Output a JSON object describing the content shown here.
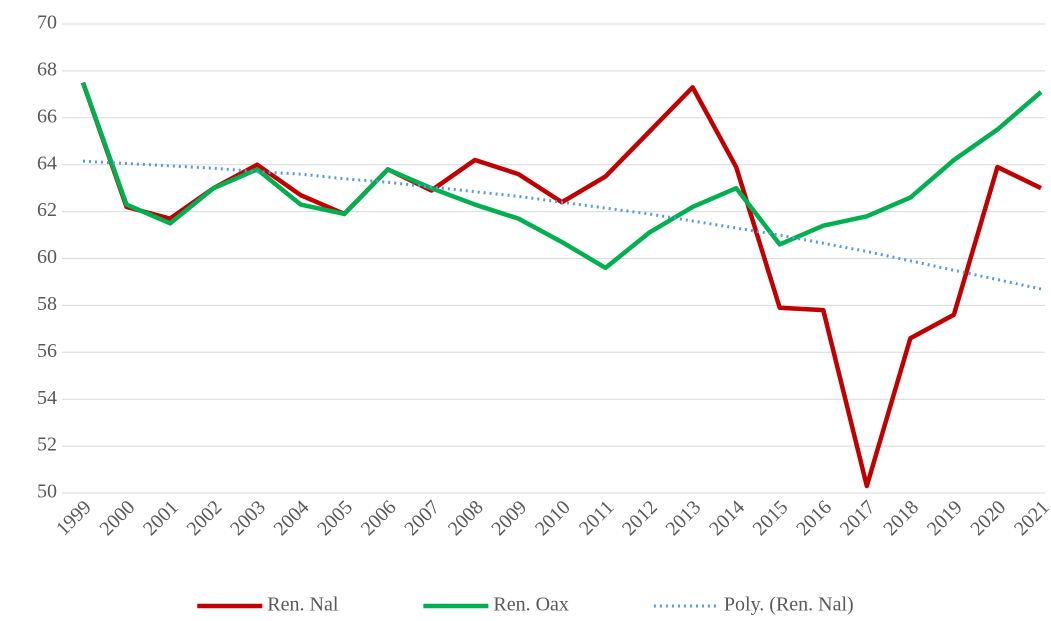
{
  "chart_data": {
    "type": "line",
    "categories": [
      "1999",
      "2000",
      "2001",
      "2002",
      "2003",
      "2004",
      "2005",
      "2006",
      "2007",
      "2008",
      "2009",
      "2010",
      "2011",
      "2012",
      "2013",
      "2014",
      "2015",
      "2016",
      "2017",
      "2018",
      "2019",
      "2020",
      "2021"
    ],
    "series": [
      {
        "name": "Ren. Nal",
        "color": "#c00000",
        "dash": "solid",
        "values": [
          67.5,
          62.2,
          61.7,
          63.0,
          64.0,
          62.7,
          61.9,
          63.8,
          62.9,
          64.2,
          63.6,
          62.4,
          63.5,
          65.4,
          67.3,
          63.9,
          57.9,
          57.8,
          50.3,
          56.6,
          57.6,
          63.9,
          63.0
        ]
      },
      {
        "name": "Ren. Oax",
        "color": "#00b050",
        "dash": "solid",
        "values": [
          67.5,
          62.3,
          61.5,
          63.0,
          63.8,
          62.3,
          61.9,
          63.8,
          63.0,
          62.3,
          61.7,
          60.7,
          59.6,
          61.1,
          62.2,
          63.0,
          60.6,
          61.4,
          61.8,
          62.6,
          64.2,
          65.5,
          67.1
        ]
      },
      {
        "name": "Poly. (Ren. Nal)",
        "color": "#5b9bd5",
        "dash": "dotted",
        "values": [
          64.15,
          64.05,
          63.95,
          63.85,
          63.7,
          63.6,
          63.4,
          63.25,
          63.05,
          62.85,
          62.65,
          62.4,
          62.15,
          61.9,
          61.6,
          61.3,
          61.0,
          60.65,
          60.3,
          59.9,
          59.5,
          59.1,
          58.7
        ]
      }
    ],
    "ylim": [
      50,
      70
    ],
    "yticks": [
      50,
      52,
      54,
      56,
      58,
      60,
      62,
      64,
      66,
      68,
      70
    ],
    "grid": true,
    "legend": "bottom"
  }
}
